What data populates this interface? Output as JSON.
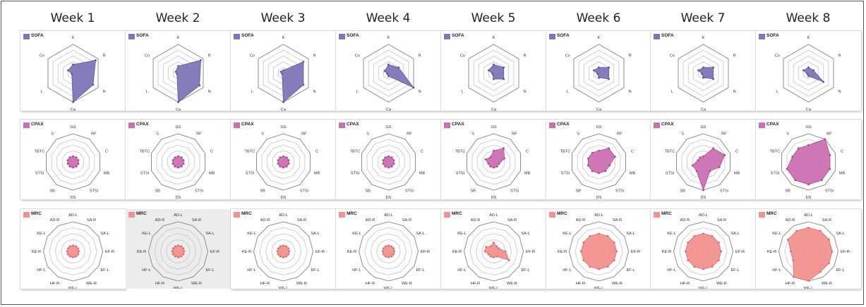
{
  "chart_data": {
    "type": "radar",
    "weeks": [
      "Week 1",
      "Week 2",
      "Week 3",
      "Week 4",
      "Week 5",
      "Week 6",
      "Week 7",
      "Week 8"
    ],
    "scores": [
      {
        "name": "SOFA",
        "color": "#7d76b8",
        "stroke": "#5e579a",
        "rings": 5,
        "axes": [
          "K",
          "R",
          "N",
          "Ca",
          "L",
          "Co"
        ],
        "weekly_values": [
          [
            0.3,
            0.9,
            0.8,
            1.0,
            0.05,
            0.2
          ],
          [
            0.25,
            0.9,
            0.85,
            1.0,
            0.05,
            0.1
          ],
          [
            0.1,
            0.8,
            0.8,
            1.0,
            0.05,
            0.1
          ],
          [
            0.3,
            0.4,
            1.0,
            0.1,
            0.05,
            0.15
          ],
          [
            0.3,
            0.4,
            0.4,
            0.2,
            0.05,
            0.2
          ],
          [
            0.2,
            0.4,
            0.4,
            0.15,
            0.05,
            0.2
          ],
          [
            0.2,
            0.4,
            0.4,
            0.15,
            0.05,
            0.2
          ],
          [
            0.2,
            0.2,
            0.6,
            0.1,
            0.05,
            0.2
          ]
        ]
      },
      {
        "name": "CPAX",
        "color": "#cc6fb2",
        "stroke": "#a8508f",
        "rings": 5,
        "axes": [
          "GS",
          "RF",
          "C",
          "MB",
          "STSi",
          "DS",
          "SB",
          "STSt",
          "TBTC",
          "S"
        ],
        "weekly_values": [
          [
            0.2,
            0.2,
            0.2,
            0.2,
            0.2,
            0.2,
            0.2,
            0.2,
            0.2,
            0.2
          ],
          [
            0.2,
            0.2,
            0.2,
            0.2,
            0.2,
            0.2,
            0.2,
            0.2,
            0.2,
            0.2
          ],
          [
            0.2,
            0.2,
            0.2,
            0.2,
            0.2,
            0.2,
            0.2,
            0.2,
            0.2,
            0.2
          ],
          [
            0.2,
            0.2,
            0.2,
            0.2,
            0.2,
            0.2,
            0.2,
            0.2,
            0.2,
            0.2
          ],
          [
            0.4,
            0.6,
            0.4,
            0.2,
            0.2,
            0.2,
            0.2,
            0.2,
            0.3,
            0.2
          ],
          [
            0.4,
            0.6,
            0.6,
            0.4,
            0.4,
            0.4,
            0.4,
            0.4,
            0.4,
            0.4
          ],
          [
            0.2,
            0.6,
            0.8,
            0.6,
            0.4,
            1.0,
            0.4,
            0.4,
            0.2,
            0.2
          ],
          [
            0.6,
            1.0,
            0.8,
            0.8,
            0.8,
            0.8,
            0.8,
            0.8,
            0.6,
            0.6
          ]
        ]
      },
      {
        "name": "MRC",
        "color": "#f2918f",
        "stroke": "#e06f6d",
        "rings": 5,
        "axes": [
          "AD-L",
          "SA-R",
          "SA-L",
          "EF-R",
          "EF-L",
          "WE-R",
          "WE-L",
          "HF-R",
          "HF-L",
          "KE-R",
          "KE-L",
          "AD-R"
        ],
        "weekly_values": [
          [
            0.2,
            0.2,
            0.2,
            0.2,
            0.2,
            0.2,
            0.2,
            0.2,
            0.2,
            0.2,
            0.2,
            0.2
          ],
          [
            0.2,
            0.2,
            0.2,
            0.2,
            0.2,
            0.2,
            0.2,
            0.2,
            0.2,
            0.2,
            0.2,
            0.2
          ],
          [
            0.2,
            0.2,
            0.2,
            0.2,
            0.2,
            0.2,
            0.2,
            0.2,
            0.2,
            0.2,
            0.2,
            0.2
          ],
          [
            0.2,
            0.2,
            0.2,
            0.2,
            0.2,
            0.2,
            0.2,
            0.2,
            0.2,
            0.2,
            0.2,
            0.2
          ],
          [
            0.3,
            0.2,
            0.2,
            0.4,
            0.6,
            0.2,
            0.2,
            0.2,
            0.2,
            0.3,
            0.3,
            0.2
          ],
          [
            0.6,
            0.6,
            0.6,
            0.6,
            0.6,
            0.6,
            0.6,
            0.6,
            0.6,
            0.6,
            0.6,
            0.6
          ],
          [
            0.6,
            0.6,
            0.6,
            0.6,
            0.6,
            0.6,
            0.6,
            0.6,
            0.6,
            0.6,
            0.6,
            0.6
          ],
          [
            0.8,
            0.8,
            0.8,
            0.8,
            0.8,
            0.8,
            1.0,
            1.0,
            0.6,
            0.6,
            0.8,
            0.8
          ]
        ]
      }
    ]
  }
}
